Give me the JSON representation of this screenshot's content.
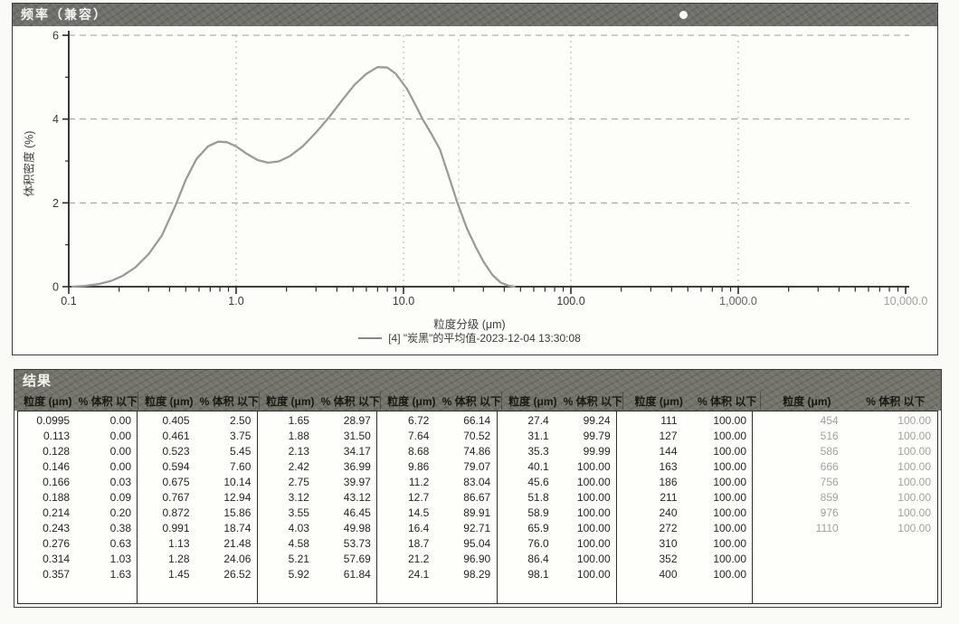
{
  "chart_panel": {
    "title": "频率（兼容）",
    "ylabel": "体积密度 (%)",
    "xlabel": "粒度分级 (μm)",
    "legend": "[4] \"炭黑\"的平均值-2023-12-04 13:30:08"
  },
  "chart_data": {
    "type": "line",
    "title": "频率（兼容）",
    "xlabel": "粒度分级 (μm)",
    "ylabel": "体积密度 (%)",
    "xscale": "log",
    "xlim": [
      0.1,
      10000
    ],
    "ylim": [
      0,
      6
    ],
    "x_tick_labels": [
      "0.1",
      "1.0",
      "10.0",
      "100.0",
      "1,000.0",
      "10,000.0"
    ],
    "x_tick_values": [
      0.1,
      1,
      10,
      100,
      1000,
      10000
    ],
    "x_tick_colors": [
      "#3a3a35",
      "#3a3a35",
      "#3a3a35",
      "#3a3a35",
      "#63635e",
      "#a2a29b"
    ],
    "y_tick_labels": [
      "0",
      "2",
      "4",
      "6"
    ],
    "y_tick_values": [
      0,
      2,
      4,
      6
    ],
    "y_minor_ticks": [
      1,
      3,
      5
    ],
    "grid": "horizontal dashed at 2,4,6; vertical dotted at decades",
    "legend_position": "bottom",
    "series": [
      {
        "name": "[4] \"炭黑\"的平均值-2023-12-04 13:30:08",
        "color": "#9b9c93",
        "points": [
          [
            0.105,
            0.0
          ],
          [
            0.125,
            0.02
          ],
          [
            0.15,
            0.06
          ],
          [
            0.18,
            0.14
          ],
          [
            0.21,
            0.26
          ],
          [
            0.25,
            0.46
          ],
          [
            0.3,
            0.78
          ],
          [
            0.36,
            1.22
          ],
          [
            0.43,
            1.9
          ],
          [
            0.5,
            2.55
          ],
          [
            0.58,
            3.05
          ],
          [
            0.68,
            3.35
          ],
          [
            0.78,
            3.46
          ],
          [
            0.88,
            3.45
          ],
          [
            1.0,
            3.35
          ],
          [
            1.15,
            3.18
          ],
          [
            1.35,
            3.02
          ],
          [
            1.55,
            2.96
          ],
          [
            1.8,
            2.99
          ],
          [
            2.1,
            3.12
          ],
          [
            2.5,
            3.35
          ],
          [
            3.0,
            3.68
          ],
          [
            3.6,
            4.05
          ],
          [
            4.3,
            4.45
          ],
          [
            5.1,
            4.82
          ],
          [
            6.0,
            5.08
          ],
          [
            7.0,
            5.24
          ],
          [
            8.0,
            5.23
          ],
          [
            9.0,
            5.08
          ],
          [
            10.5,
            4.72
          ],
          [
            12.0,
            4.28
          ],
          [
            13.0,
            4.0
          ],
          [
            14.5,
            3.68
          ],
          [
            16.5,
            3.28
          ],
          [
            18.5,
            2.68
          ],
          [
            21.0,
            2.0
          ],
          [
            24.0,
            1.38
          ],
          [
            27.0,
            0.95
          ],
          [
            30.0,
            0.6
          ],
          [
            34.0,
            0.28
          ],
          [
            38.0,
            0.1
          ],
          [
            42.0,
            0.03
          ],
          [
            46.0,
            0.0
          ]
        ]
      }
    ]
  },
  "results_panel": {
    "title": "结果",
    "col_headers": {
      "size": "粒度 (μm)",
      "pct": "% 体积 以下"
    },
    "groups": [
      {
        "faded": false,
        "rows": [
          [
            "0.0995",
            "0.00"
          ],
          [
            "0.113",
            "0.00"
          ],
          [
            "0.128",
            "0.00"
          ],
          [
            "0.146",
            "0.00"
          ],
          [
            "0.166",
            "0.03"
          ],
          [
            "0.188",
            "0.09"
          ],
          [
            "0.214",
            "0.20"
          ],
          [
            "0.243",
            "0.38"
          ],
          [
            "0.276",
            "0.63"
          ],
          [
            "0.314",
            "1.03"
          ],
          [
            "0.357",
            "1.63"
          ]
        ]
      },
      {
        "faded": false,
        "rows": [
          [
            "0.405",
            "2.50"
          ],
          [
            "0.461",
            "3.75"
          ],
          [
            "0.523",
            "5.45"
          ],
          [
            "0.594",
            "7.60"
          ],
          [
            "0.675",
            "10.14"
          ],
          [
            "0.767",
            "12.94"
          ],
          [
            "0.872",
            "15.86"
          ],
          [
            "0.991",
            "18.74"
          ],
          [
            "1.13",
            "21.48"
          ],
          [
            "1.28",
            "24.06"
          ],
          [
            "1.45",
            "26.52"
          ]
        ]
      },
      {
        "faded": false,
        "rows": [
          [
            "1.65",
            "28.97"
          ],
          [
            "1.88",
            "31.50"
          ],
          [
            "2.13",
            "34.17"
          ],
          [
            "2.42",
            "36.99"
          ],
          [
            "2.75",
            "39.97"
          ],
          [
            "3.12",
            "43.12"
          ],
          [
            "3.55",
            "46.45"
          ],
          [
            "4.03",
            "49.98"
          ],
          [
            "4.58",
            "53.73"
          ],
          [
            "5.21",
            "57.69"
          ],
          [
            "5.92",
            "61.84"
          ]
        ]
      },
      {
        "faded": false,
        "rows": [
          [
            "6.72",
            "66.14"
          ],
          [
            "7.64",
            "70.52"
          ],
          [
            "8.68",
            "74.86"
          ],
          [
            "9.86",
            "79.07"
          ],
          [
            "11.2",
            "83.04"
          ],
          [
            "12.7",
            "86.67"
          ],
          [
            "14.5",
            "89.91"
          ],
          [
            "16.4",
            "92.71"
          ],
          [
            "18.7",
            "95.04"
          ],
          [
            "21.2",
            "96.90"
          ],
          [
            "24.1",
            "98.29"
          ]
        ]
      },
      {
        "faded": false,
        "rows": [
          [
            "27.4",
            "99.24"
          ],
          [
            "31.1",
            "99.79"
          ],
          [
            "35.3",
            "99.99"
          ],
          [
            "40.1",
            "100.00"
          ],
          [
            "45.6",
            "100.00"
          ],
          [
            "51.8",
            "100.00"
          ],
          [
            "58.9",
            "100.00"
          ],
          [
            "65.9",
            "100.00"
          ],
          [
            "76.0",
            "100.00"
          ],
          [
            "86.4",
            "100.00"
          ],
          [
            "98.1",
            "100.00"
          ]
        ]
      },
      {
        "faded": false,
        "rows": [
          [
            "111",
            "100.00"
          ],
          [
            "127",
            "100.00"
          ],
          [
            "144",
            "100.00"
          ],
          [
            "163",
            "100.00"
          ],
          [
            "186",
            "100.00"
          ],
          [
            "211",
            "100.00"
          ],
          [
            "240",
            "100.00"
          ],
          [
            "272",
            "100.00"
          ],
          [
            "310",
            "100.00"
          ],
          [
            "352",
            "100.00"
          ],
          [
            "400",
            "100.00"
          ]
        ]
      },
      {
        "faded": true,
        "rows": [
          [
            "454",
            "100.00"
          ],
          [
            "516",
            "100.00"
          ],
          [
            "586",
            "100.00"
          ],
          [
            "666",
            "100.00"
          ],
          [
            "756",
            "100.00"
          ],
          [
            "859",
            "100.00"
          ],
          [
            "976",
            "100.00"
          ],
          [
            "1110",
            "100.00"
          ]
        ]
      }
    ]
  }
}
